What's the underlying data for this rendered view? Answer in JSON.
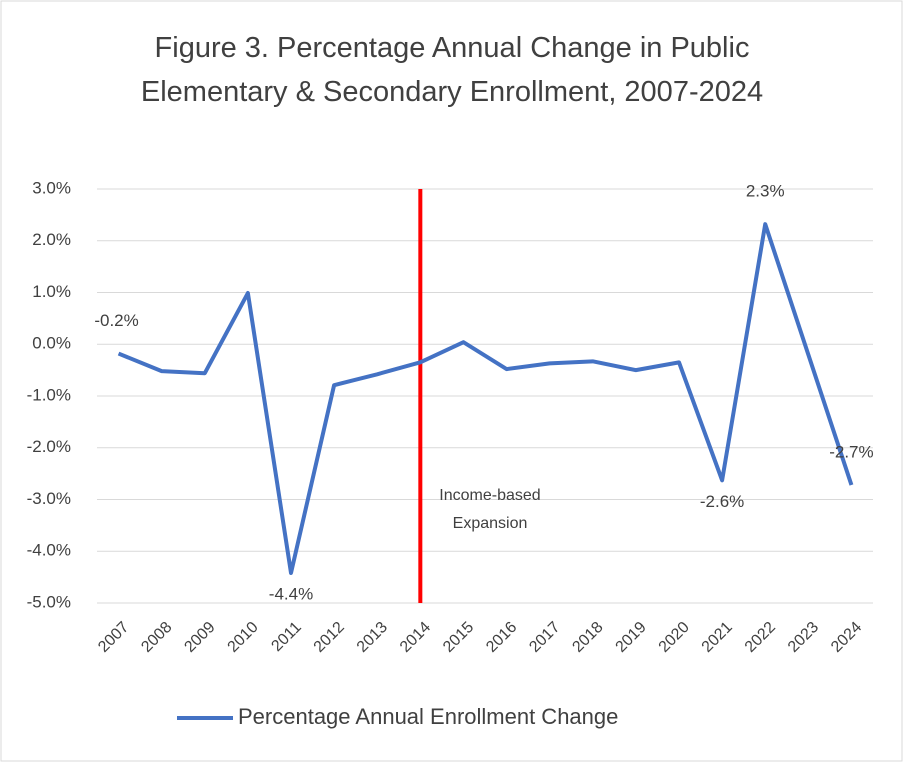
{
  "chart_data": {
    "type": "line",
    "title": "Figure 3. Percentage Annual Change in Public Elementary & Secondary Enrollment, 2007-2024",
    "categories": [
      "2007",
      "2008",
      "2009",
      "2010",
      "2011",
      "2012",
      "2013",
      "2014",
      "2015",
      "2016",
      "2017",
      "2018",
      "2019",
      "2020",
      "2021",
      "2022",
      "2023",
      "2024"
    ],
    "series": [
      {
        "name": "Percentage Annual Enrollment Change",
        "color": "#4472c4",
        "values": [
          -0.18,
          -0.52,
          -0.56,
          0.99,
          -4.42,
          -0.79,
          -0.58,
          -0.35,
          0.04,
          -0.48,
          -0.37,
          -0.33,
          -0.5,
          -0.35,
          -2.63,
          2.32,
          -0.2,
          -2.72
        ],
        "value_labels": [
          "-0.2%",
          null,
          null,
          null,
          "-4.4%",
          null,
          null,
          null,
          null,
          null,
          null,
          null,
          null,
          null,
          "-2.6%",
          "2.3%",
          null,
          "-2.7%"
        ]
      }
    ],
    "ylim": [
      -5,
      3
    ],
    "yticks": [
      {
        "value": -5,
        "label": "-5.0%"
      },
      {
        "value": -4,
        "label": "-4.0%"
      },
      {
        "value": -3,
        "label": "-3.0%"
      },
      {
        "value": -2,
        "label": "-2.0%"
      },
      {
        "value": -1,
        "label": "-1.0%"
      },
      {
        "value": 0,
        "label": "0.0%"
      },
      {
        "value": 1,
        "label": "1.0%"
      },
      {
        "value": 2,
        "label": "2.0%"
      },
      {
        "value": 3,
        "label": "3.0%"
      }
    ],
    "grid": true,
    "legend": "bottom",
    "vline": {
      "x": "2014",
      "color": "#ff0000",
      "annotation": "Income-based Expansion"
    }
  }
}
